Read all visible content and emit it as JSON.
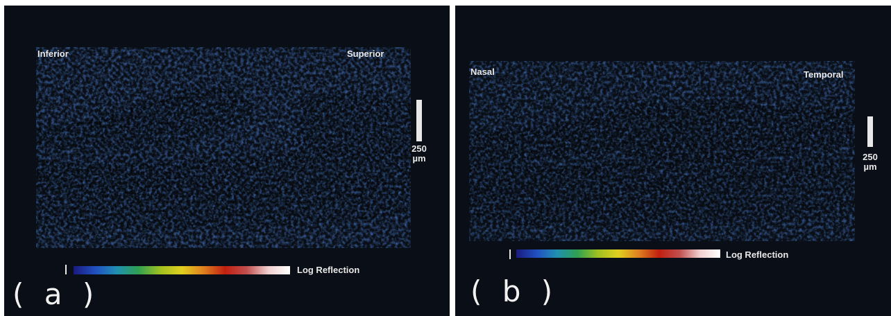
{
  "figure": {
    "panels": [
      {
        "letter": "( a )",
        "left_label": "Inferior",
        "right_label": "Superior",
        "scale_value": "250",
        "scale_unit": "µm",
        "colorbar_label": "Log Reflection"
      },
      {
        "letter": "( b )",
        "left_label": "Nasal",
        "right_label": "Temporal",
        "scale_value": "250",
        "scale_unit": "µm",
        "colorbar_label": "Log Reflection"
      }
    ],
    "colors": {
      "background": "#0a0f17",
      "colormap": [
        "#1a1a80",
        "#2060d0",
        "#20a0a0",
        "#30b040",
        "#e0e020",
        "#e08020",
        "#c02010",
        "#e0a0a0",
        "#ffffff"
      ]
    }
  }
}
